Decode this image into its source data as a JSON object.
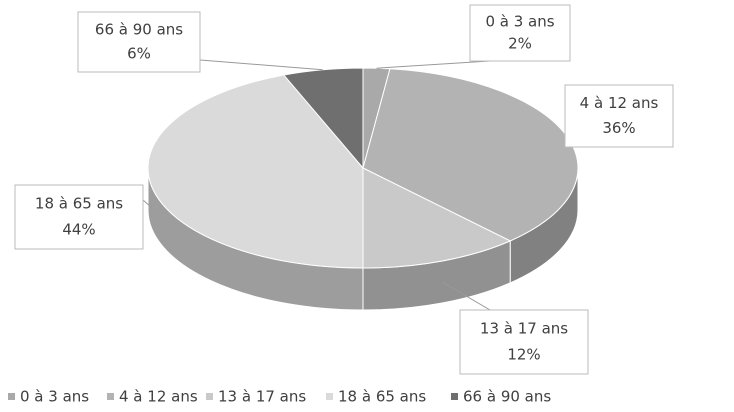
{
  "chart_data": {
    "type": "pie3d",
    "categories": [
      "0 à 3 ans",
      "4 à 12 ans",
      "13 à 17 ans",
      "18 à 65 ans",
      "66 à 90 ans"
    ],
    "values": [
      2,
      36,
      12,
      44,
      6
    ],
    "value_labels": [
      "2%",
      "36%",
      "12%",
      "44%",
      "6%"
    ],
    "colors": [
      "#a9a9a9",
      "#b3b3b3",
      "#c9c9c9",
      "#dadada",
      "#6f6f6f"
    ],
    "legend": "bottom"
  }
}
